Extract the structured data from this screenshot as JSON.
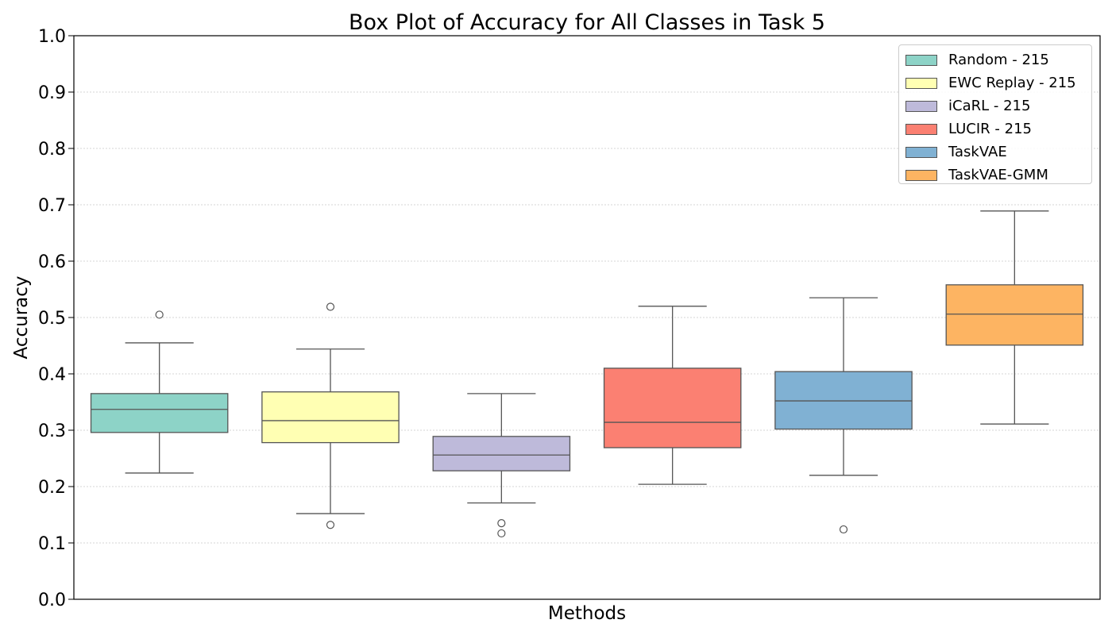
{
  "chart_data": {
    "type": "box",
    "title": "Box Plot of Accuracy for All Classes in Task 5",
    "xlabel": "Methods",
    "ylabel": "Accuracy",
    "ylim": [
      0.0,
      1.0
    ],
    "yticks": [
      "0.0",
      "0.1",
      "0.2",
      "0.3",
      "0.4",
      "0.5",
      "0.6",
      "0.7",
      "0.8",
      "0.9",
      "1.0"
    ],
    "grid": "y dotted",
    "legend_position": "top-right",
    "series": [
      {
        "name": "Random - 215",
        "color": "#8dd3c7",
        "whisker_low": 0.224,
        "q1": 0.296,
        "median": 0.337,
        "q3": 0.365,
        "whisker_high": 0.455,
        "outliers": [
          0.505
        ]
      },
      {
        "name": "EWC Replay - 215",
        "color": "#ffffb3",
        "whisker_low": 0.152,
        "q1": 0.278,
        "median": 0.317,
        "q3": 0.368,
        "whisker_high": 0.444,
        "outliers": [
          0.519,
          0.132
        ]
      },
      {
        "name": "iCaRL - 215",
        "color": "#bebada",
        "whisker_low": 0.171,
        "q1": 0.228,
        "median": 0.256,
        "q3": 0.289,
        "whisker_high": 0.365,
        "outliers": [
          0.135,
          0.117
        ]
      },
      {
        "name": "LUCIR - 215",
        "color": "#fb8072",
        "whisker_low": 0.204,
        "q1": 0.269,
        "median": 0.314,
        "q3": 0.41,
        "whisker_high": 0.52,
        "outliers": []
      },
      {
        "name": "TaskVAE",
        "color": "#80b1d3",
        "whisker_low": 0.22,
        "q1": 0.302,
        "median": 0.352,
        "q3": 0.404,
        "whisker_high": 0.535,
        "outliers": [
          0.124
        ]
      },
      {
        "name": "TaskVAE-GMM",
        "color": "#fdb462",
        "whisker_low": 0.311,
        "q1": 0.451,
        "median": 0.506,
        "q3": 0.558,
        "whisker_high": 0.689,
        "outliers": []
      }
    ]
  }
}
